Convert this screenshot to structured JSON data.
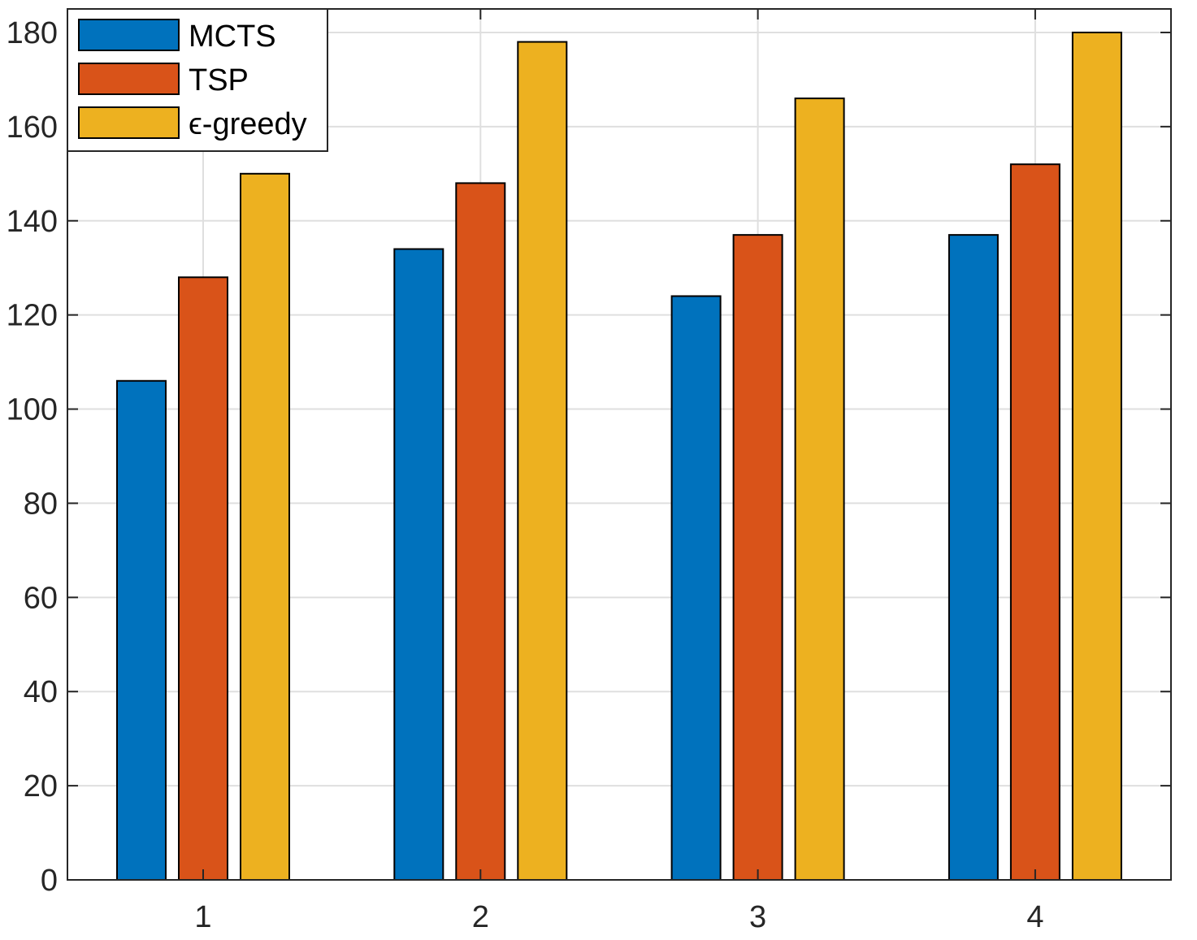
{
  "chart_data": {
    "type": "bar",
    "title": "",
    "xlabel": "",
    "ylabel": "",
    "categories": [
      "1",
      "2",
      "3",
      "4"
    ],
    "ylim": [
      0,
      185
    ],
    "yticks": [
      0,
      20,
      40,
      60,
      80,
      100,
      120,
      140,
      160,
      180
    ],
    "grid": true,
    "legend_position": "top-left",
    "series": [
      {
        "name": "MCTS",
        "color": "#0072BD",
        "values": [
          106,
          134,
          124,
          137
        ]
      },
      {
        "name": "TSP",
        "color": "#D95319",
        "values": [
          128,
          148,
          137,
          152
        ]
      },
      {
        "name": "ϵ-greedy",
        "color": "#EDB120",
        "values": [
          150,
          178,
          166,
          180
        ]
      }
    ]
  }
}
